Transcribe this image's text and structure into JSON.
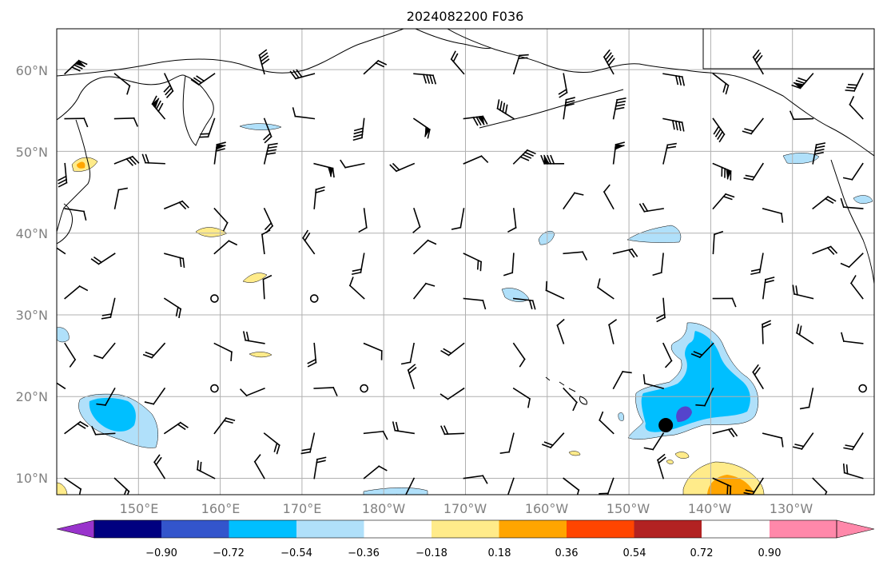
{
  "title": "2024082200 F036",
  "map": {
    "lon_range_east": [
      140,
      240
    ],
    "lat_range": [
      8,
      65
    ],
    "latitude_labels": [
      "10°N",
      "20°N",
      "30°N",
      "40°N",
      "50°N",
      "60°N"
    ],
    "longitude_labels": [
      "150°E",
      "160°E",
      "170°E",
      "180°W",
      "170°W",
      "160°W",
      "150°W",
      "140°W",
      "130°W"
    ],
    "gridlines": true
  },
  "colorbar": {
    "tick_labels": [
      "−0.90",
      "−0.72",
      "−0.54",
      "−0.36",
      "−0.18",
      "0.18",
      "0.36",
      "0.54",
      "0.72",
      "0.90"
    ],
    "colors": [
      "#9933cc",
      "#000080",
      "#3355cc",
      "#00bfff",
      "#b0e0fa",
      "#ffffff",
      "#ffeb8a",
      "#ffa500",
      "#ff4500",
      "#b22222",
      "#ff88aa"
    ],
    "extend": "both"
  },
  "marker": {
    "lon": 214.5,
    "lat": 16.5,
    "color": "#000000"
  },
  "fields": {
    "negative_colors": [
      "#b0e0fa",
      "#00bfff",
      "#3355cc"
    ],
    "positive_colors": [
      "#ffeb8a",
      "#ffa500"
    ]
  }
}
